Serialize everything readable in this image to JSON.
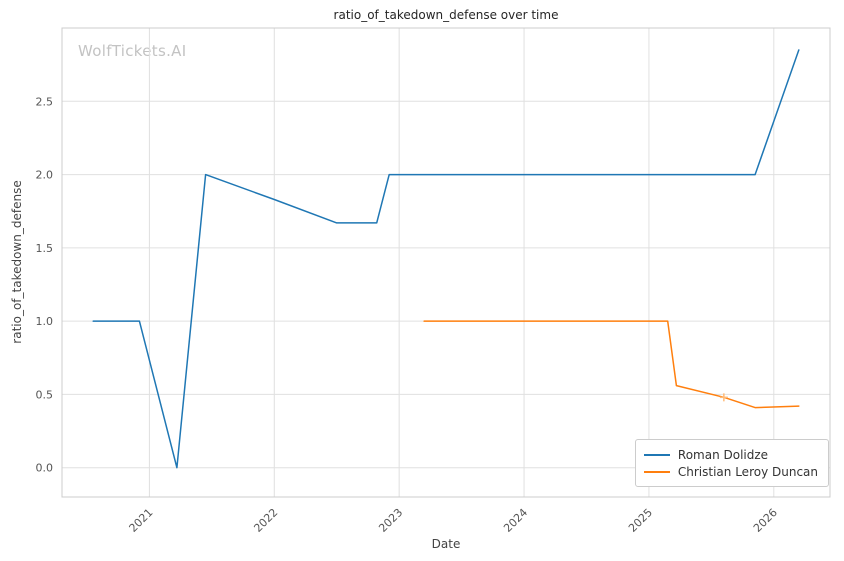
{
  "watermark": "WolfTickets.AI",
  "chart_data": {
    "type": "line",
    "title": "ratio_of_takedown_defense over time",
    "xlabel": "Date",
    "ylabel": "ratio_of_takedown_defense",
    "xlim": [
      2020.3,
      2026.45
    ],
    "ylim": [
      -0.2,
      3.0
    ],
    "x_ticks": [
      2021,
      2022,
      2023,
      2024,
      2025,
      2026
    ],
    "y_ticks": [
      0.0,
      0.5,
      1.0,
      1.5,
      2.0,
      2.5
    ],
    "grid": true,
    "legend_position": "lower right",
    "colors": {
      "grid": "#e0e0e0",
      "spine": "#cccccc",
      "tick_label": "#555555",
      "marker_accent": "#ffbb78"
    },
    "series": [
      {
        "name": "Roman Dolidze",
        "color": "#1f77b4",
        "x": [
          2020.55,
          2020.92,
          2021.22,
          2021.45,
          2022.0,
          2022.5,
          2022.82,
          2022.92,
          2025.85,
          2026.2
        ],
        "y": [
          1.0,
          1.0,
          0.0,
          2.0,
          1.83,
          1.67,
          1.67,
          2.0,
          2.0,
          2.85
        ]
      },
      {
        "name": "Christian Leroy Duncan",
        "color": "#ff7f0e",
        "x": [
          2023.2,
          2025.15,
          2025.22,
          2025.6,
          2025.85,
          2026.2
        ],
        "y": [
          1.0,
          1.0,
          0.56,
          0.48,
          0.41,
          0.42
        ],
        "markers": [
          {
            "x": 2025.6,
            "y": 0.48,
            "symbol": "+"
          }
        ]
      }
    ]
  }
}
